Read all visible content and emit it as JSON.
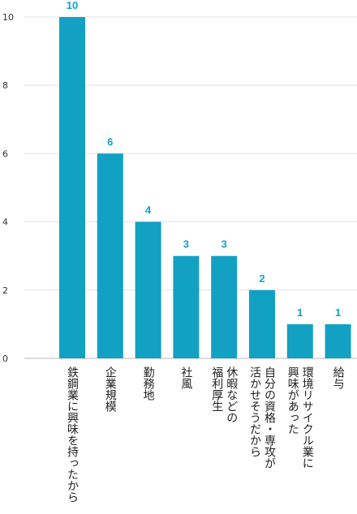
{
  "chart_data": {
    "type": "bar",
    "categories": [
      [
        "鉄鋼業に興味を持ったから"
      ],
      [
        "企業規模"
      ],
      [
        "勤務地"
      ],
      [
        "社風"
      ],
      [
        "休暇などの",
        "福利厚生"
      ],
      [
        "自分の資格・専攻が",
        "活かせそうだから"
      ],
      [
        "環境リサイクル業に",
        "興味があった"
      ],
      [
        "給与"
      ]
    ],
    "values": [
      10,
      6,
      4,
      3,
      3,
      2,
      1,
      1
    ],
    "data_labels": [
      "10",
      "6",
      "4",
      "3",
      "3",
      "2",
      "1",
      "1"
    ],
    "ylim": [
      0,
      10
    ],
    "yticks": [
      "0",
      "2",
      "4",
      "6",
      "8",
      "10"
    ],
    "ytick_values": [
      0,
      2,
      4,
      6,
      8,
      10
    ],
    "grid": true,
    "colors": {
      "bar": "#12a1c3",
      "label": "#12a1c3",
      "grid": "#e3e3e3",
      "axis": "#bbbbbb"
    }
  }
}
